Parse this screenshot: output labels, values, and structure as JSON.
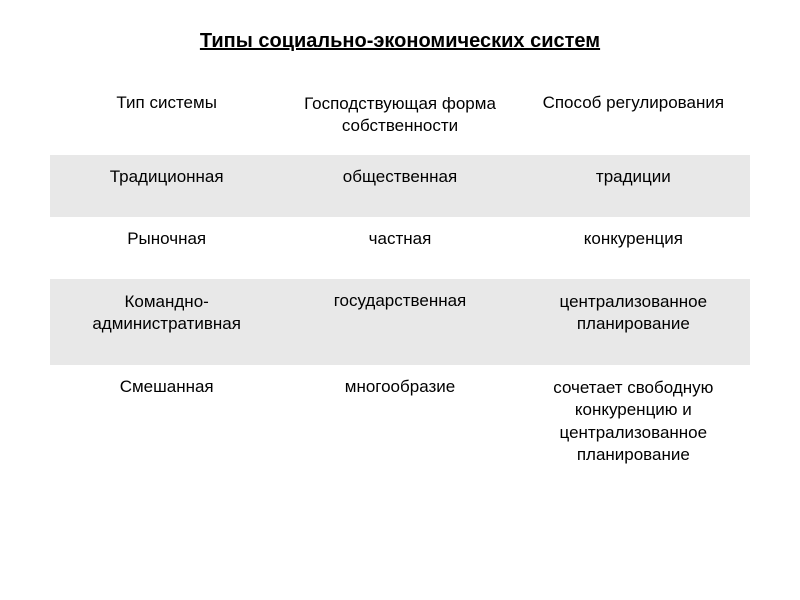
{
  "title": "Типы социально-экономических систем",
  "table": {
    "columns": [
      "Тип системы",
      "Господствующая форма собственности",
      "Способ регулирования"
    ],
    "rows": [
      {
        "cells": [
          "Традиционная",
          "общественная",
          "традиции"
        ],
        "shaded": true
      },
      {
        "cells": [
          "Рыночная",
          "частная",
          "конкуренция"
        ],
        "shaded": false
      },
      {
        "cells": [
          "Командно-административная",
          "государственная",
          "централизованное планирование"
        ],
        "shaded": true
      },
      {
        "cells": [
          "Смешанная",
          "многообразие",
          "сочетает свободную конкуренцию и централизованное планирование"
        ],
        "shaded": false
      }
    ],
    "colors": {
      "background": "#ffffff",
      "shaded_row": "#e8e8e8",
      "text": "#000000"
    },
    "typography": {
      "title_fontsize": 20,
      "title_weight": "bold",
      "title_underline": true,
      "cell_fontsize": 17,
      "font_family": "Arial"
    },
    "column_widths": [
      "33.3%",
      "33.3%",
      "33.3%"
    ]
  }
}
